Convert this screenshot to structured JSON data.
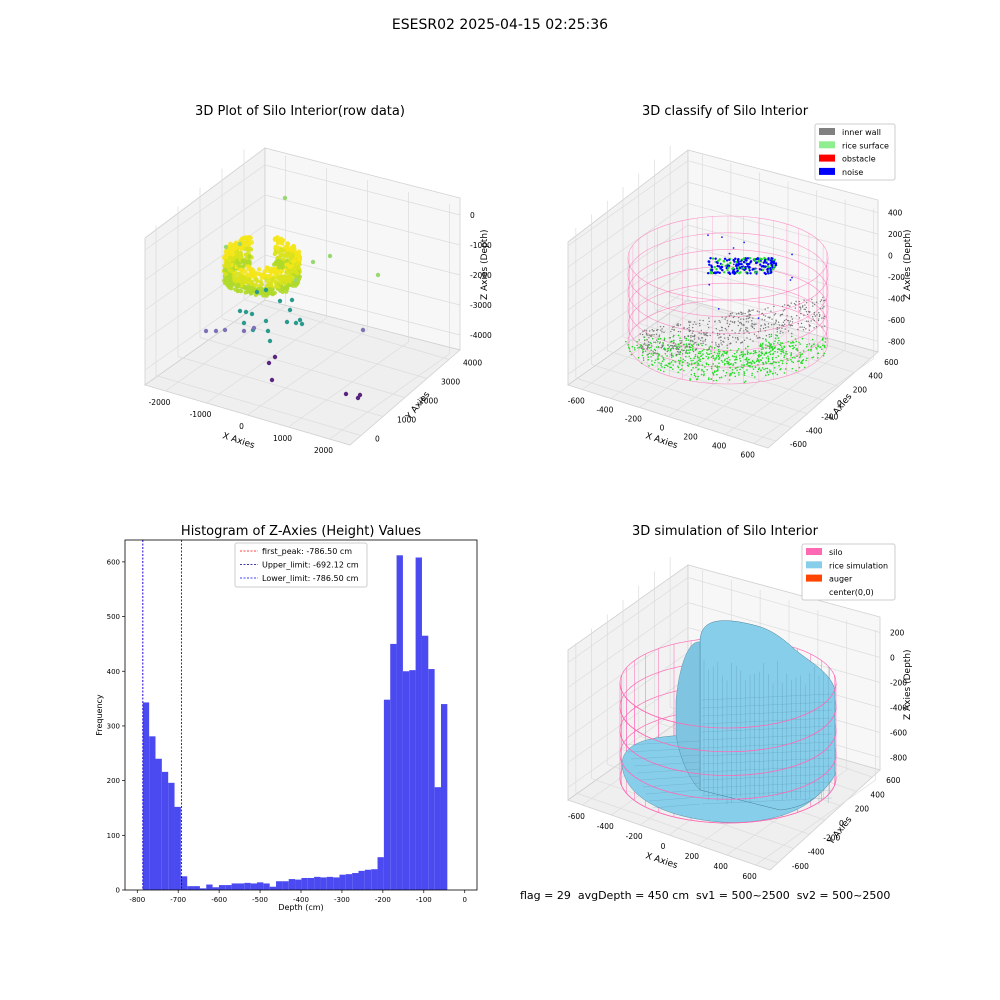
{
  "figure": {
    "suptitle": "ESESR02 2025-04-15 02:25:36",
    "footer": "flag = 29  avgDepth = 450 cm  sv1 = 500~2500  sv2 = 500~2500"
  },
  "colors": {
    "inner_wall": "#808080",
    "rice_surface": "#90ee90",
    "obstacle": "#ff0000",
    "noise": "#0000ff",
    "silo": "#ff69b4",
    "rice_simulation": "#87ceeb",
    "auger": "#ff4500",
    "histogram_bars": "#4a4af0"
  },
  "panels": {
    "raw": {
      "title": "3D Plot of Silo Interior(row data)",
      "xlabel": "X Axies",
      "ylabel": "Y Axies",
      "zlabel": "Z Axies (Depth)",
      "xticks": [
        "-2000",
        "-1000",
        "0",
        "1000",
        "2000"
      ],
      "yticks": [
        "0",
        "1000",
        "2000",
        "3000",
        "4000"
      ],
      "zticks": [
        "0",
        "-1000",
        "-2000",
        "-3000",
        "-4000"
      ]
    },
    "classify": {
      "title": "3D classify of Silo Interior",
      "xlabel": "X Axies",
      "ylabel": "Y Axies",
      "zlabel": "Z Axies (Depth)",
      "xticks": [
        "-600",
        "-400",
        "-200",
        "0",
        "200",
        "400",
        "600"
      ],
      "yticks": [
        "-600",
        "-400",
        "-200",
        "0",
        "200",
        "400",
        "600"
      ],
      "zticks": [
        "400",
        "200",
        "0",
        "-200",
        "-400",
        "-600",
        "-800"
      ],
      "legend": [
        {
          "label": "inner wall",
          "color": "#808080"
        },
        {
          "label": "rice surface",
          "color": "#90ee90"
        },
        {
          "label": "obstacle",
          "color": "#ff0000"
        },
        {
          "label": "noise",
          "color": "#0000ff"
        }
      ]
    },
    "simulation": {
      "title": "3D simulation of Silo Interior",
      "xlabel": "X Axies",
      "ylabel": "Y Axies",
      "zlabel": "Z Axies (Depth)",
      "xticks": [
        "-600",
        "-400",
        "-200",
        "0",
        "200",
        "400",
        "600"
      ],
      "yticks": [
        "-600",
        "-400",
        "-200",
        "0",
        "200",
        "400",
        "600"
      ],
      "zticks": [
        "200",
        "0",
        "-200",
        "-400",
        "-600",
        "-800"
      ],
      "legend": [
        {
          "label": "silo",
          "color": "#ff69b4"
        },
        {
          "label": "rice simulation",
          "color": "#87ceeb"
        },
        {
          "label": "auger",
          "color": "#ff4500"
        },
        {
          "label": "center(0,0)",
          "color": ""
        }
      ]
    }
  },
  "chart_data": [
    {
      "type": "scatter",
      "title": "3D Plot of Silo Interior(row data)"
    },
    {
      "type": "scatter",
      "title": "3D classify of Silo Interior"
    },
    {
      "type": "bar",
      "title": "Histogram of Z-Axies (Height) Values",
      "xlabel": "Depth (cm)",
      "ylabel": "Frequency",
      "xlim": [
        -830,
        30
      ],
      "ylim": [
        0,
        640
      ],
      "xticks": [
        -800,
        -700,
        -600,
        -500,
        -400,
        -300,
        -200,
        -100,
        0
      ],
      "yticks": [
        0,
        100,
        200,
        300,
        400,
        500,
        600
      ],
      "bin_width": 15.5,
      "bin_start": -786.5,
      "values": [
        343,
        281,
        240,
        216,
        196,
        152,
        25,
        7,
        7,
        3,
        10,
        5,
        9,
        9,
        12,
        12,
        13,
        12,
        14,
        12,
        6,
        16,
        16,
        20,
        19,
        22,
        22,
        24,
        23,
        24,
        23,
        28,
        29,
        31,
        35,
        37,
        38,
        60,
        348,
        450,
        612,
        400,
        402,
        608,
        465,
        404,
        188,
        340
      ],
      "vlines": [
        {
          "label": "first_peak: -786.50 cm",
          "x": -786.5,
          "color": "#ff0000"
        },
        {
          "label": "Upper_limit: -692.12 cm",
          "x": -692.12,
          "color": "#00008b"
        },
        {
          "label": "Lower_limit: -786.50 cm",
          "x": -786.5,
          "color": "#0000ff"
        }
      ]
    },
    {
      "type": "other",
      "title": "3D simulation of Silo Interior"
    }
  ]
}
